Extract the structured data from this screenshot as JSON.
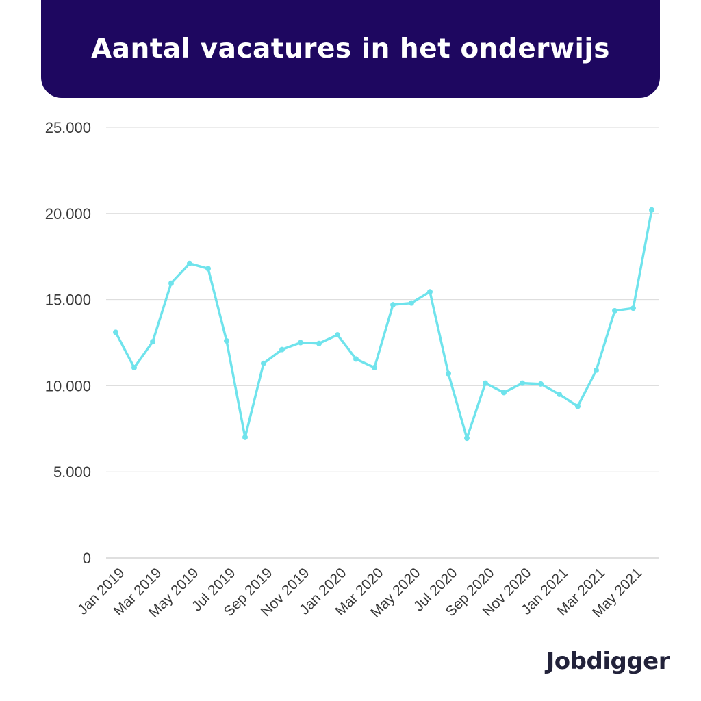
{
  "header": {
    "title": "Aantal vacatures in het onderwijs"
  },
  "brand": {
    "logo_text": "Jobdigger"
  },
  "colors": {
    "header_bg": "#1e0760",
    "line": "#6fe3ec",
    "grid": "#d9d9d9",
    "axis_text": "#3a3a3a"
  },
  "chart_data": {
    "type": "line",
    "title": "Aantal vacatures in het onderwijs",
    "xlabel": "",
    "ylabel": "",
    "ylim": [
      0,
      25000
    ],
    "y_ticks": [
      "0",
      "5.000",
      "10.000",
      "15.000",
      "20.000",
      "25.000"
    ],
    "y_tick_values": [
      0,
      5000,
      10000,
      15000,
      20000,
      25000
    ],
    "grid": true,
    "categories": [
      "Jan 2019",
      "Feb 2019",
      "Mar 2019",
      "Apr 2019",
      "May 2019",
      "Jun 2019",
      "Jul 2019",
      "Aug 2019",
      "Sep 2019",
      "Oct 2019",
      "Nov 2019",
      "Dec 2019",
      "Jan 2020",
      "Feb 2020",
      "Mar 2020",
      "Apr 2020",
      "May 2020",
      "Jun 2020",
      "Jul 2020",
      "Aug 2020",
      "Sep 2020",
      "Oct 2020",
      "Nov 2020",
      "Dec 2020",
      "Jan 2021",
      "Feb 2021",
      "Mar 2021",
      "Apr 2021",
      "May 2021",
      "Jun 2021"
    ],
    "x_tick_labels": [
      "Jan 2019",
      "Mar 2019",
      "May 2019",
      "Jul 2019",
      "Sep 2019",
      "Nov 2019",
      "Jan 2020",
      "Mar 2020",
      "May 2020",
      "Jul 2020",
      "Sep 2020",
      "Nov 2020",
      "Jan 2021",
      "Mar 2021",
      "May 2021"
    ],
    "series": [
      {
        "values": [
          13100,
          11050,
          12550,
          15950,
          17100,
          16800,
          12600,
          7000,
          11300,
          12100,
          12500,
          12450,
          12950,
          11550,
          11050,
          14700,
          14800,
          15450,
          10700,
          6950,
          10150,
          9600,
          10150,
          10100,
          9500,
          8800,
          10900,
          14350,
          14500,
          20200
        ]
      }
    ]
  }
}
